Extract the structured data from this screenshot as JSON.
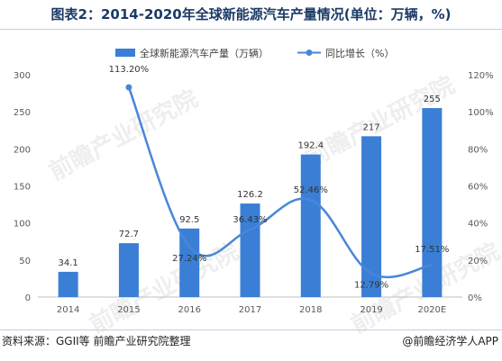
{
  "title": "图表2：2014-2020年全球新能源汽车产量情况(单位：万辆，%)",
  "footer": {
    "source": "资料来源：GGII等 前瞻产业研究院整理",
    "brand": "@前瞻经济学人APP"
  },
  "watermark": "前瞻产业研究院",
  "chart_data": {
    "type": "bar",
    "categories": [
      "2014",
      "2015",
      "2016",
      "2017",
      "2018",
      "2019",
      "2020E"
    ],
    "series": [
      {
        "name": "全球新能源汽车产量（万辆）",
        "type": "bar",
        "axis": "left",
        "values": [
          34.1,
          72.7,
          92.5,
          126.2,
          192.4,
          217,
          255
        ],
        "labels": [
          "34.1",
          "72.7",
          "92.5",
          "126.2",
          "192.4",
          "217",
          "255"
        ],
        "color": "#3a7fd5"
      },
      {
        "name": "同比增长（%）",
        "type": "line",
        "axis": "right",
        "values": [
          null,
          113.2,
          27.24,
          36.43,
          52.46,
          12.79,
          17.51
        ],
        "labels": [
          "",
          "113.20%",
          "27.24%",
          "36.43%",
          "52.46%",
          "12.79%",
          "17.51%"
        ],
        "color": "#4a86d8"
      }
    ],
    "y_left": {
      "min": 0,
      "max": 300,
      "ticks": [
        "0",
        "50",
        "100",
        "150",
        "200",
        "250",
        "300"
      ]
    },
    "y_right": {
      "min": 0,
      "max": 120,
      "ticks": [
        "0%",
        "20%",
        "40%",
        "60%",
        "80%",
        "100%",
        "120%"
      ]
    },
    "legend_position": "top",
    "grid": false
  }
}
